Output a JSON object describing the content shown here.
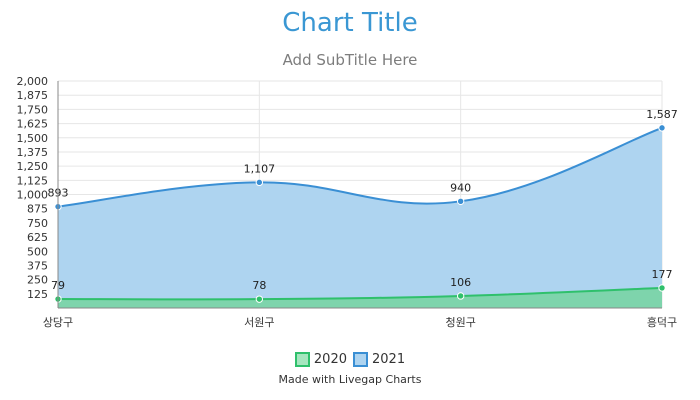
{
  "chart_data": {
    "type": "area",
    "title": "Chart Title",
    "subtitle": "Add SubTitle Here",
    "categories": [
      "상당구",
      "서원구",
      "청원구",
      "흥덕구"
    ],
    "series": [
      {
        "name": "2021",
        "values": [
          893,
          1107,
          940,
          1587
        ],
        "labels": [
          "893",
          "1,107",
          "940",
          "1,587"
        ],
        "line_color": "#3a8fd4",
        "fill_color": "#aed4f0"
      },
      {
        "name": "2020",
        "values": [
          79,
          78,
          106,
          177
        ],
        "labels": [
          "79",
          "78",
          "106",
          "177"
        ],
        "line_color": "#2fc06c",
        "fill_color": "#7ed4ac"
      }
    ],
    "ylim": [
      0,
      2000
    ],
    "yticks": [
      125,
      250,
      375,
      500,
      625,
      750,
      875,
      1000,
      1125,
      1250,
      1375,
      1500,
      1625,
      1750,
      1875,
      2000
    ],
    "ytick_labels": [
      "125",
      "250",
      "375",
      "500",
      "625",
      "750",
      "875",
      "1,000",
      "1,125",
      "1,250",
      "1,375",
      "1,500",
      "1,625",
      "1,750",
      "1,875",
      "2,000"
    ],
    "grid": true,
    "legend_position": "bottom",
    "legend": [
      {
        "name": "2020",
        "fill": "#a6e6bf",
        "border": "#2fc06c"
      },
      {
        "name": "2021",
        "fill": "#aed4f0",
        "border": "#3a8fd4"
      }
    ],
    "credit": "Made with Livegap Charts"
  }
}
